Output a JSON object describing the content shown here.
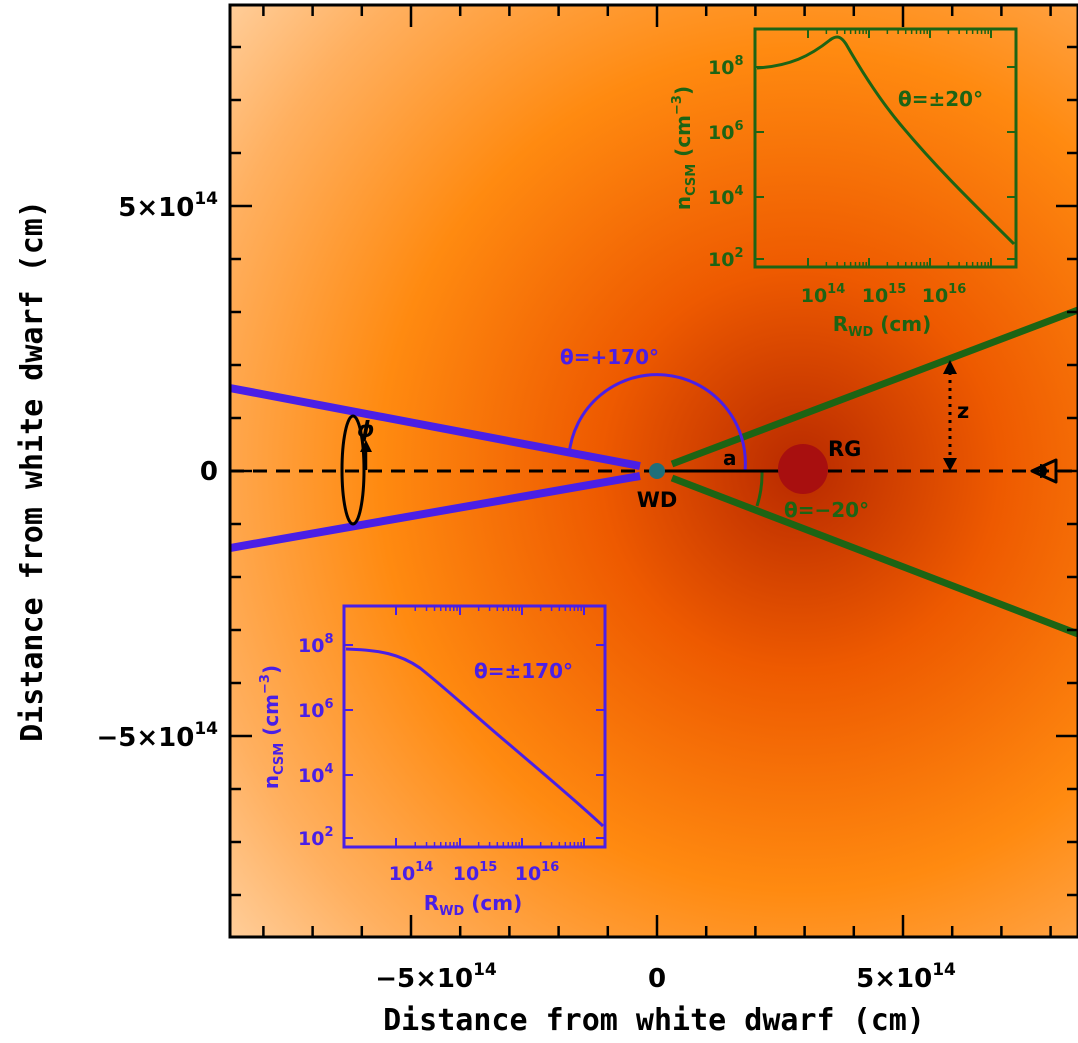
{
  "axes": {
    "xlabel": "Distance from white dwarf (cm)",
    "ylabel": "Distance from white dwarf (cm)",
    "x_ticks": [
      {
        "value": -500000000000000.0,
        "mantissa": "−5×10",
        "exp": "14"
      },
      {
        "value": 0,
        "mantissa": "0",
        "exp": ""
      },
      {
        "value": 500000000000000.0,
        "mantissa": "5×10",
        "exp": "14"
      }
    ],
    "y_ticks": [
      {
        "value": 500000000000000.0,
        "mantissa": "5×10",
        "exp": "14"
      },
      {
        "value": 0,
        "mantissa": "0",
        "exp": ""
      },
      {
        "value": -500000000000000.0,
        "mantissa": "−5×10",
        "exp": "14"
      }
    ],
    "xlim": [
      -880000000000000.0,
      850000000000000.0
    ],
    "ylim": [
      -890000000000000.0,
      890000000000000.0
    ]
  },
  "labels": {
    "wd": "WD",
    "rg": "RG",
    "a": "a",
    "z": "z",
    "phi": "ϕ",
    "theta_plus": "θ=+170°",
    "theta_minus": "θ=−20°"
  },
  "geometry": {
    "rg_position_cm": 300000000000000.0,
    "observer_z_cm": 600000000000000.0,
    "cone_half_angle_right_deg": 20,
    "cone_half_angle_left_deg": 170
  },
  "insets": {
    "top": {
      "color": "#1d6414",
      "theta_label": "θ=±20°",
      "ylabel_main": "n",
      "ylabel_sub": "CSM",
      "ylabel_unit": " (cm",
      "ylabel_unit_exp": "−3",
      "ylabel_close": ")",
      "xlabel_main": "R",
      "xlabel_sub": "WD",
      "xlabel_unit": " (cm)",
      "y_tick_exps": [
        "8",
        "6",
        "4",
        "2"
      ],
      "x_tick_exps": [
        "14",
        "15",
        "16"
      ]
    },
    "bottom": {
      "color": "#4a1fe6",
      "theta_label": "θ=±170°",
      "ylabel_main": "n",
      "ylabel_sub": "CSM",
      "ylabel_unit": " (cm",
      "ylabel_unit_exp": "−3",
      "ylabel_close": ")",
      "xlabel_main": "R",
      "xlabel_sub": "WD",
      "xlabel_unit": " (cm)",
      "y_tick_exps": [
        "8",
        "6",
        "4",
        "2"
      ],
      "x_tick_exps": [
        "14",
        "15",
        "16"
      ]
    }
  },
  "colors": {
    "cone_right": "#1d6414",
    "cone_left": "#4a1fe6",
    "rg": "#a80f0f",
    "wd": "#1f6f7a",
    "background_core": "#d03a00",
    "background_mid": "#ff8a10",
    "background_edge": "#ffffff"
  }
}
